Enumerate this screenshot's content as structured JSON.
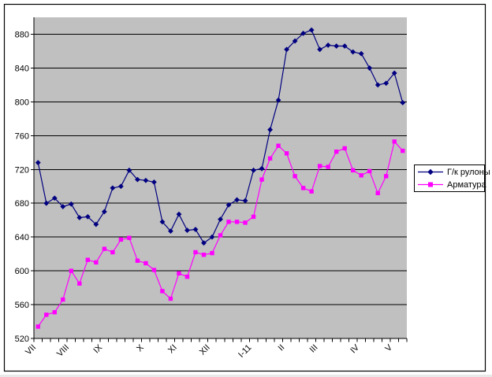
{
  "chart_data": {
    "type": "line",
    "title": "",
    "plot_bg_color": "#c0c0c0",
    "grid": "horizontal",
    "gridline_color": "#000000",
    "axis_color": "#000000",
    "ylim": [
      520,
      900
    ],
    "y_tick_labels": [
      520,
      560,
      600,
      640,
      680,
      720,
      760,
      800,
      840,
      880
    ],
    "x_month_labels": [
      {
        "label": "VII",
        "start_index": 0
      },
      {
        "label": "VIII",
        "start_index": 4
      },
      {
        "label": "IX",
        "start_index": 8
      },
      {
        "label": "X",
        "start_index": 13
      },
      {
        "label": "XI",
        "start_index": 17
      },
      {
        "label": "XII",
        "start_index": 21
      },
      {
        "label": "I-11",
        "start_index": 26
      },
      {
        "label": "II",
        "start_index": 30
      },
      {
        "label": "III",
        "start_index": 34
      },
      {
        "label": "IV",
        "start_index": 39
      },
      {
        "label": "V",
        "start_index": 43
      }
    ],
    "legend_position": "right",
    "series": [
      {
        "name": "Г/к рулоны",
        "color": "#000080",
        "marker": "diamond",
        "values": [
          728,
          680,
          686,
          676,
          679,
          663,
          664,
          655,
          670,
          698,
          700,
          719,
          708,
          707,
          705,
          658,
          647,
          667,
          648,
          649,
          633,
          640,
          661,
          678,
          684,
          683,
          719,
          721,
          767,
          802,
          862,
          872,
          881,
          885,
          862,
          867,
          866,
          866,
          859,
          857,
          840,
          820,
          822,
          834,
          799
        ]
      },
      {
        "name": "Арматура",
        "color": "#ff00ff",
        "marker": "square",
        "values": [
          534,
          548,
          551,
          566,
          600,
          585,
          613,
          610,
          626,
          622,
          637,
          639,
          612,
          609,
          601,
          576,
          567,
          597,
          593,
          622,
          619,
          621,
          642,
          658,
          658,
          657,
          664,
          708,
          733,
          748,
          739,
          712,
          698,
          694,
          724,
          723,
          741,
          745,
          719,
          713,
          718,
          692,
          712,
          753,
          742
        ]
      }
    ]
  },
  "legend": {
    "items": [
      {
        "label": "Г/к рулоны"
      },
      {
        "label": "Арматура"
      }
    ]
  }
}
